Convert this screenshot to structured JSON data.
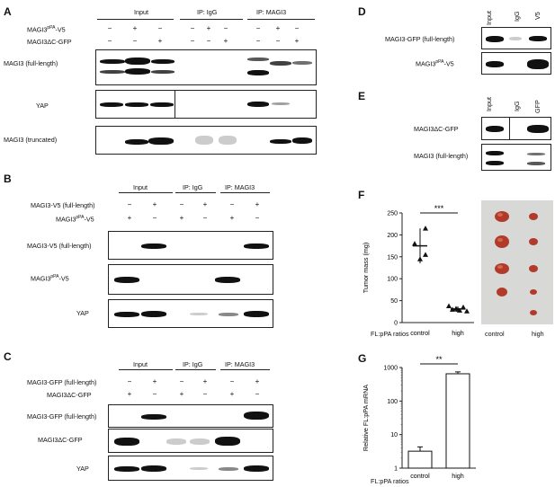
{
  "panels": {
    "A": {
      "letter": "A",
      "groups": [
        "Input",
        "IP:  IgG",
        "IP:  MAGI3"
      ],
      "rows": [
        {
          "label_html": "MAGI3<sup>pPA</sup>-V5",
          "signs": [
            "−",
            "+",
            "−",
            "−",
            "+",
            "−",
            "−",
            "+",
            "−"
          ]
        },
        {
          "label": "MAGI3ΔC-GFP",
          "signs": [
            "−",
            "−",
            "+",
            "−",
            "−",
            "+",
            "−",
            "−",
            "+"
          ]
        }
      ],
      "blots": [
        "MAGI3 (full-length)",
        "YAP",
        "MAGI3 (truncated)"
      ]
    },
    "B": {
      "letter": "B",
      "groups": [
        "Input",
        "IP:  IgG",
        "IP:  MAGI3"
      ],
      "rows": [
        {
          "label": "MAGI3-V5 (full-length)",
          "signs": [
            "−",
            "+",
            "−",
            "+",
            "−",
            "+"
          ]
        },
        {
          "label_html": "MAGI3<sup>pPA</sup>-V5",
          "signs": [
            "+",
            "−",
            "+",
            "−",
            "+",
            "−"
          ]
        }
      ],
      "blots": [
        "MAGI3-V5 (full-length)",
        "MAGI3pPA-V5",
        "YAP"
      ]
    },
    "C": {
      "letter": "C",
      "groups": [
        "Input",
        "IP:  IgG",
        "IP:  MAGI3"
      ],
      "rows": [
        {
          "label": "MAGI3-GFP (full-length)",
          "signs": [
            "−",
            "+",
            "−",
            "+",
            "−",
            "+"
          ]
        },
        {
          "label": "MAGI3ΔC-GFP",
          "signs": [
            "+",
            "−",
            "+",
            "−",
            "+",
            "−"
          ]
        }
      ],
      "blots": [
        "MAGI3-GFP (full-length)",
        "MAGI3ΔC-GFP",
        "YAP"
      ]
    },
    "D": {
      "letter": "D",
      "lanes": [
        "Input",
        "IgG",
        "V5"
      ],
      "blots": [
        "MAGI3-GFP (full-length)",
        "MAGI3pPA-V5"
      ]
    },
    "E": {
      "letter": "E",
      "lanes": [
        "Input",
        "IgG",
        "GFP"
      ],
      "blots": [
        "MAGI3ΔC-GFP",
        "MAGI3 (full-length)"
      ]
    },
    "F": {
      "letter": "F",
      "ylabel": "Tumor mass (mg)",
      "ratio_label": "FL:pPA ratios",
      "photo_labels": [
        "control",
        "high"
      ],
      "significance": "***"
    },
    "G": {
      "letter": "G",
      "ylabel": "Relative FL:pPA mRNA",
      "ratio_label": "FL:pPA ratios",
      "significance": "**"
    }
  },
  "chart_data": [
    {
      "type": "scatter",
      "panel": "F",
      "ylabel": "Tumor mass (mg)",
      "xlabel": "FL:pPA ratios",
      "categories": [
        "control",
        "high"
      ],
      "ylim": [
        0,
        250
      ],
      "yticks": [
        0,
        50,
        100,
        150,
        200,
        250
      ],
      "series": [
        {
          "category": "control",
          "marker": "triangle",
          "points": [
            180,
            145,
            155,
            215
          ],
          "mean": 175,
          "sd_low": 135,
          "sd_high": 215
        },
        {
          "category": "high",
          "marker": "triangle",
          "points": [
            38,
            30,
            32,
            28,
            35,
            26,
            30
          ],
          "mean": 31,
          "sd_low": 25,
          "sd_high": 37
        }
      ]
    },
    {
      "type": "bar",
      "panel": "G",
      "ylabel": "Relative FL:pPA mRNA",
      "xlabel": "FL:pPA ratios",
      "categories": [
        "control",
        "high"
      ],
      "values": [
        3.2,
        650
      ],
      "errors": [
        1.1,
        90
      ],
      "yscale": "log",
      "ylim": [
        1,
        1000
      ],
      "yticks": [
        1,
        10,
        100,
        1000
      ]
    }
  ]
}
